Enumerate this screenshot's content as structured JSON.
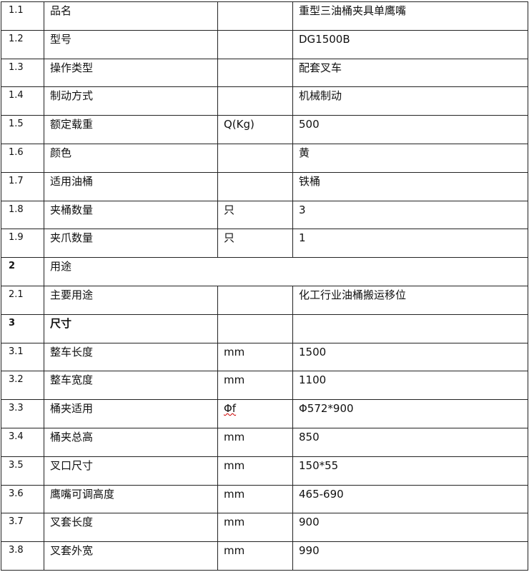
{
  "rows": [
    {
      "no": "1.1",
      "name": "品名",
      "unit": "",
      "value": "重型三油桶夹具单鹰嘴"
    },
    {
      "no": "1.2",
      "name": "型号",
      "unit": "",
      "value": "DG1500B"
    },
    {
      "no": "1.3",
      "name": "操作类型",
      "unit": "",
      "value": "配套叉车"
    },
    {
      "no": "1.4",
      "name": "制动方式",
      "unit": "",
      "value": "机械制动"
    },
    {
      "no": "1.5",
      "name": "额定载重",
      "unit": "Q(Kg)",
      "value": "500"
    },
    {
      "no": "1.6",
      "name": "颜色",
      "unit": "",
      "value": "黄"
    },
    {
      "no": "1.7",
      "name": "适用油桶",
      "unit": "",
      "value": "铁桶"
    },
    {
      "no": "1.8",
      "name": "夹桶数量",
      "unit": "只",
      "value": "3"
    },
    {
      "no": "1.9",
      "name": "夹爪数量",
      "unit": "只",
      "value": "1"
    },
    {
      "no": "2",
      "name": "用途",
      "section": true
    },
    {
      "no": "2.1",
      "name": "主要用途",
      "unit": "",
      "value": "化工行业油桶搬运移位"
    },
    {
      "no": "3",
      "name": "尺寸",
      "unit": "",
      "value": "",
      "bold": true
    },
    {
      "no": "3.1",
      "name": "整车长度",
      "unit": "mm",
      "value": "1500"
    },
    {
      "no": "3.2",
      "name": "整车宽度",
      "unit": "mm",
      "value": "1100"
    },
    {
      "no": "3.3",
      "name": "桶夹适用",
      "unit": "Φf",
      "value": "Φ572*900"
    },
    {
      "no": "3.4",
      "name": "桶夹总高",
      "unit": "mm",
      "value": "850"
    },
    {
      "no": "3.5",
      "name": "叉口尺寸",
      "unit": "mm",
      "value": "150*55"
    },
    {
      "no": "3.6",
      "name": "鹰嘴可调高度",
      "unit": "mm",
      "value": "465-690"
    },
    {
      "no": "3.7",
      "name": "叉套长度",
      "unit": "mm",
      "value": "900"
    },
    {
      "no": "3.8",
      "name": "叉套外宽",
      "unit": "mm",
      "value": "990"
    }
  ]
}
